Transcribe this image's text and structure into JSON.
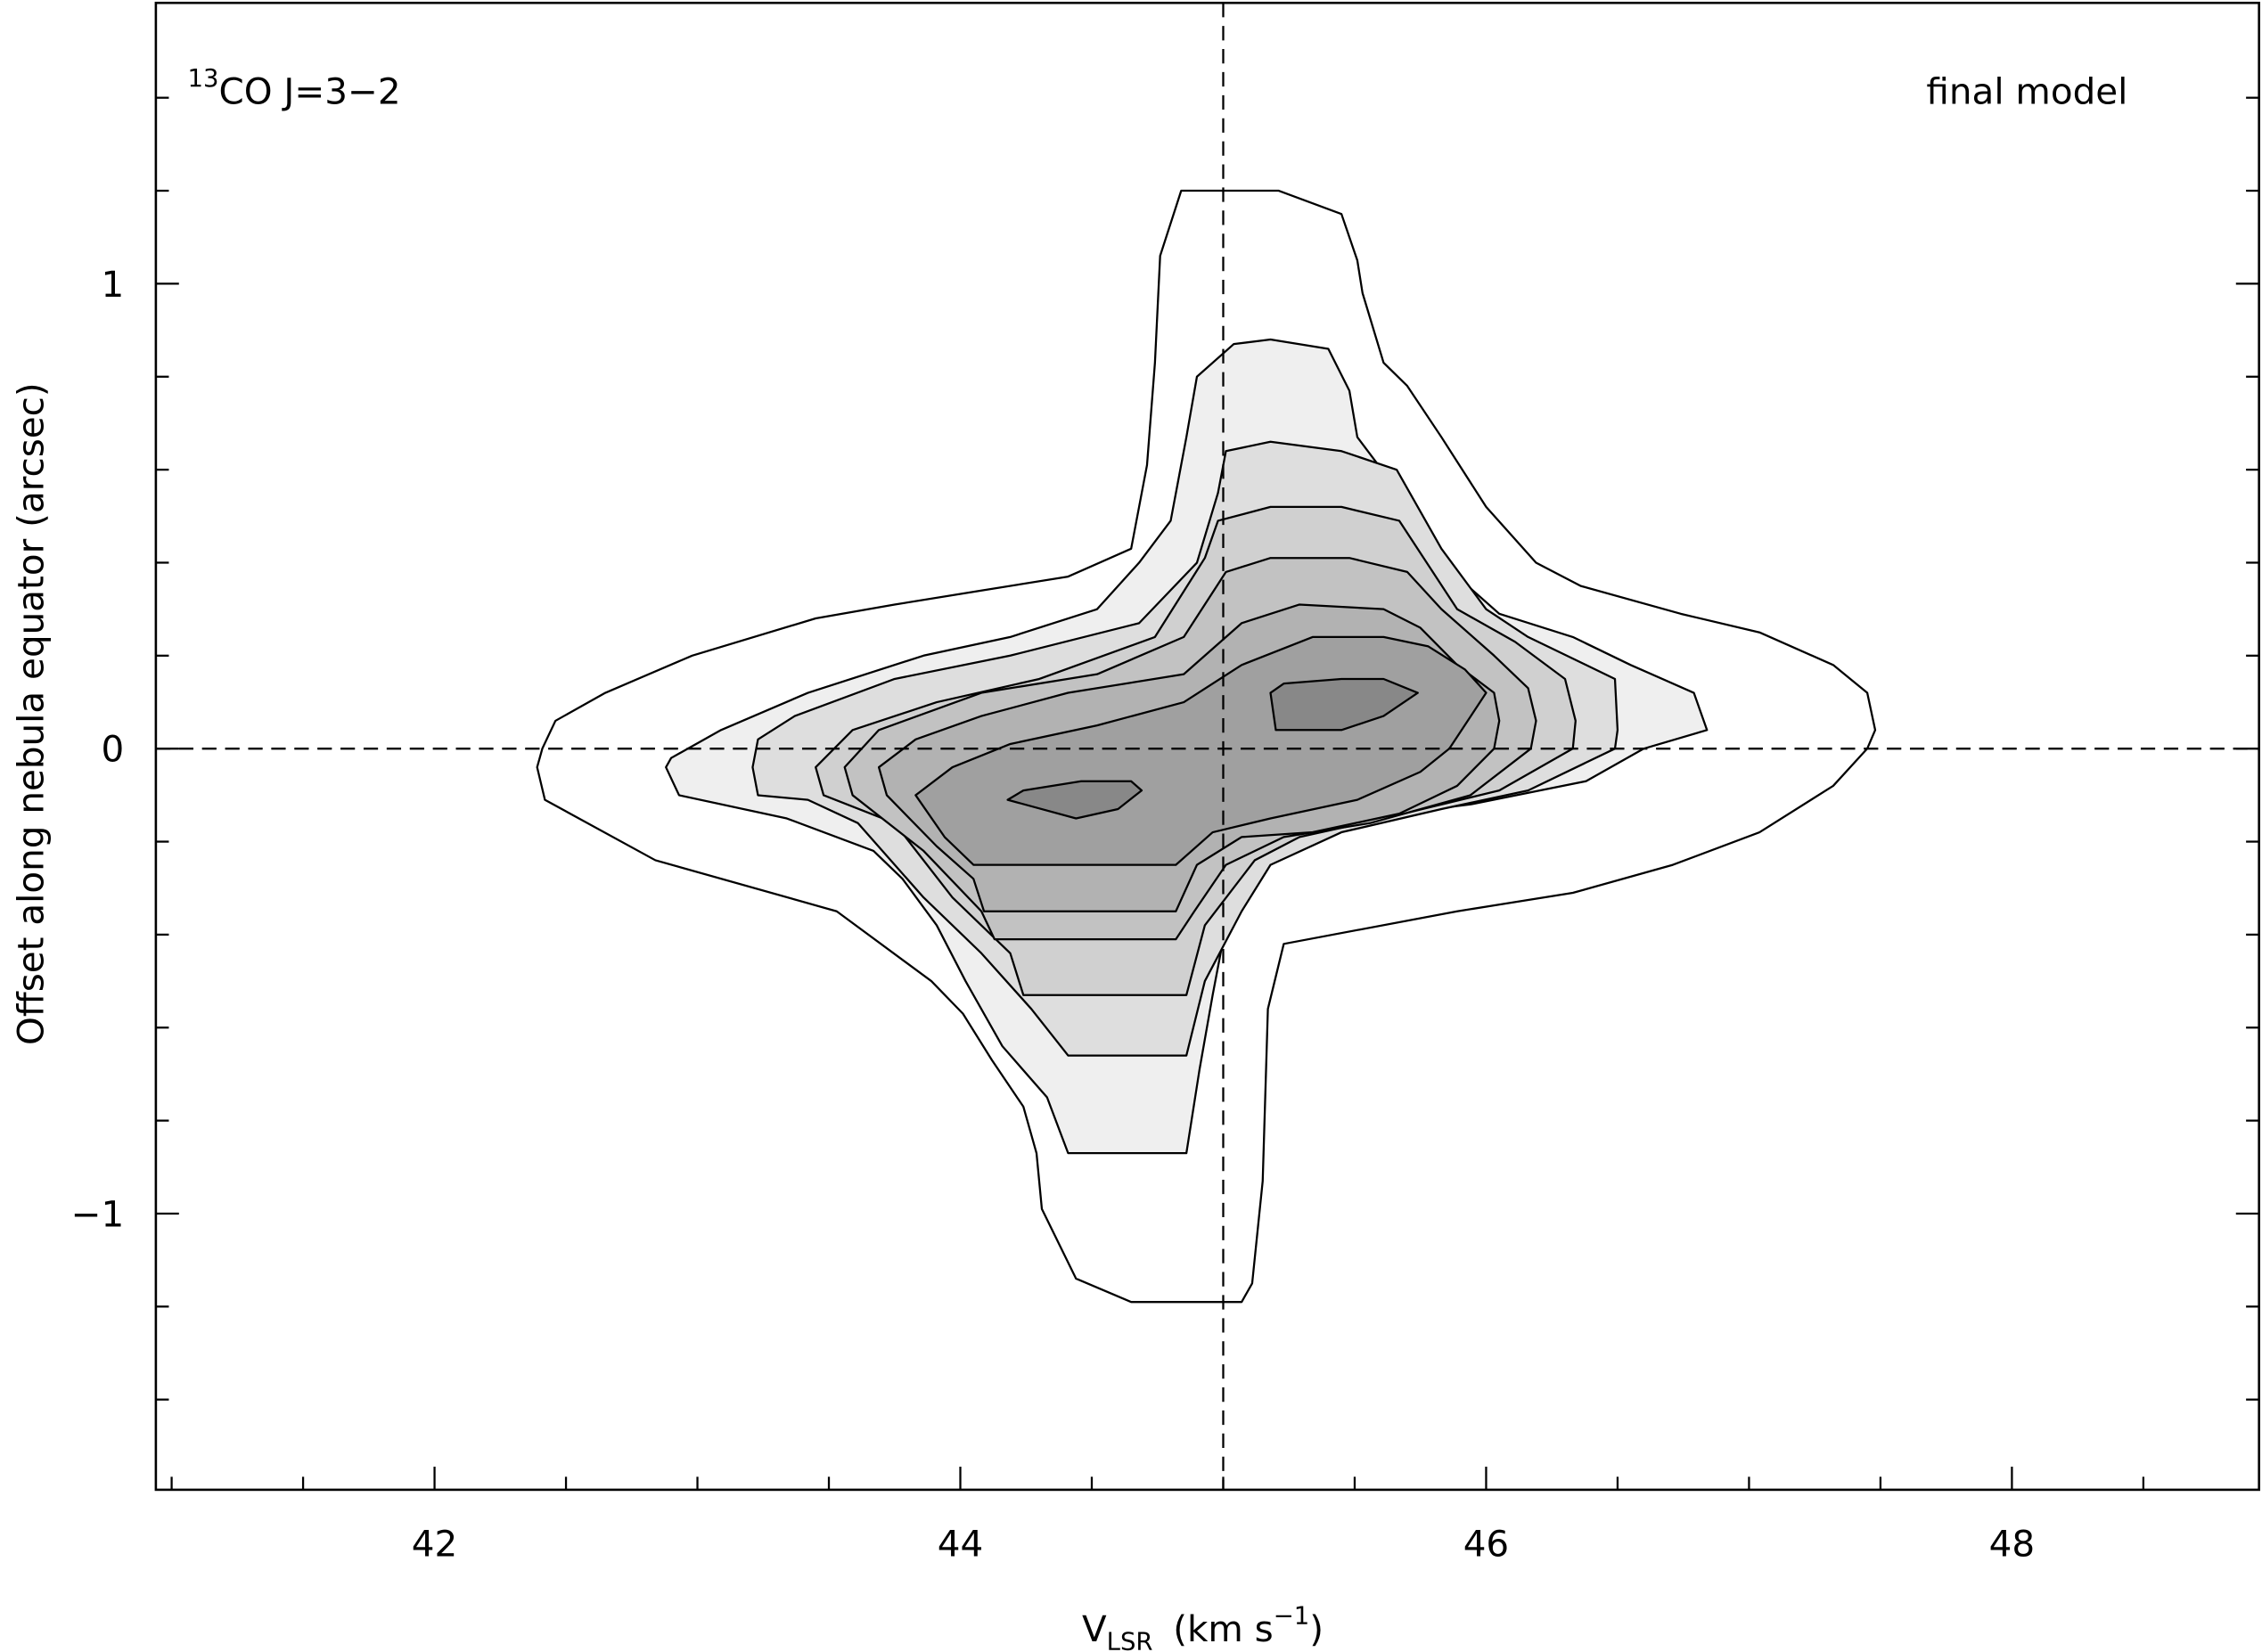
{
  "chart_data": {
    "type": "contour",
    "annotation": {
      "sup": "13",
      "text": "CO J=3−2"
    },
    "label_right": "final model",
    "xlabel": {
      "text": "V",
      "sub": "LSR",
      "unit": "(km s",
      "sup": "−1",
      "close": ")"
    },
    "ylabel": "Offset along nebula equator (arcsec)",
    "xlim": [
      40.94,
      48.94
    ],
    "ylim": [
      -1.594,
      1.604
    ],
    "xticks": [
      42,
      44,
      46,
      48
    ],
    "xminorticks": [
      41,
      41.5,
      42.5,
      43,
      43.5,
      44.5,
      45,
      45.5,
      46.5,
      47,
      47.5,
      48.5
    ],
    "yticks": [
      {
        "value": -1,
        "label": "−1"
      },
      0,
      1
    ],
    "yminorticks": [
      -1.4,
      -1.2,
      -0.8,
      -0.6,
      -0.4,
      -0.2,
      0.2,
      0.4,
      0.6,
      0.8,
      1.2,
      1.4
    ],
    "reference_lines": {
      "x": 45,
      "y": 0
    },
    "contours": [
      {
        "fill": "#ffffff",
        "x": [
          42.41,
          42.39,
          42.42,
          42.84,
          43.53,
          43.89,
          44.01,
          44.12,
          44.24,
          44.29,
          44.31,
          44.44,
          44.65,
          45.07,
          45.11,
          45.15,
          45.17,
          45.23,
          45.89,
          46.33,
          46.71,
          47.04,
          47.32,
          47.45,
          47.48,
          47.45,
          47.32,
          47.04,
          46.74,
          46.36,
          46.19,
          46.0,
          45.83,
          45.7,
          45.61,
          45.53,
          45.51,
          45.45,
          45.21,
          44.84,
          44.76,
          44.74,
          44.71,
          44.65,
          44.41,
          44.08,
          43.75,
          43.45,
          42.98,
          42.65,
          42.46
        ],
        "y": [
          0.0,
          -0.04,
          -0.11,
          -0.24,
          -0.35,
          -0.5,
          -0.57,
          -0.67,
          -0.77,
          -0.87,
          -0.99,
          -1.14,
          -1.19,
          -1.19,
          -1.15,
          -0.93,
          -0.56,
          -0.42,
          -0.35,
          -0.31,
          -0.25,
          -0.18,
          -0.08,
          0.0,
          0.04,
          0.12,
          0.18,
          0.25,
          0.29,
          0.35,
          0.4,
          0.52,
          0.67,
          0.78,
          0.83,
          0.98,
          1.05,
          1.15,
          1.2,
          1.2,
          1.06,
          0.83,
          0.61,
          0.43,
          0.37,
          0.34,
          0.31,
          0.28,
          0.2,
          0.12,
          0.06
        ]
      },
      {
        "fill": "#efefef",
        "x": [
          42.88,
          42.93,
          43.34,
          43.67,
          43.78,
          43.91,
          44.02,
          44.16,
          44.33,
          44.41,
          44.86,
          44.91,
          44.96,
          45.01,
          45.07,
          45.18,
          45.51,
          45.94,
          46.38,
          46.6,
          46.84,
          46.79,
          46.55,
          46.33,
          46.05,
          45.89,
          45.67,
          45.51,
          45.48,
          45.4,
          45.18,
          45.04,
          44.9,
          44.86,
          44.8,
          44.68,
          44.52,
          44.19,
          43.86,
          43.42,
          43.09,
          42.9
        ],
        "y": [
          -0.04,
          -0.1,
          -0.15,
          -0.22,
          -0.28,
          -0.38,
          -0.5,
          -0.64,
          -0.75,
          -0.87,
          -0.87,
          -0.69,
          -0.53,
          -0.38,
          -0.25,
          -0.19,
          -0.15,
          -0.12,
          -0.07,
          0.0,
          0.04,
          0.12,
          0.18,
          0.24,
          0.29,
          0.37,
          0.55,
          0.67,
          0.77,
          0.86,
          0.88,
          0.87,
          0.8,
          0.67,
          0.49,
          0.4,
          0.3,
          0.24,
          0.2,
          0.12,
          0.04,
          -0.02
        ]
      },
      {
        "fill": "#dedede",
        "x": [
          43.21,
          43.23,
          43.42,
          43.61,
          43.86,
          44.08,
          44.27,
          44.41,
          44.86,
          44.93,
          45.07,
          45.18,
          45.45,
          45.83,
          46.16,
          46.49,
          46.5,
          46.49,
          46.16,
          46.0,
          45.83,
          45.66,
          45.45,
          45.18,
          45.01,
          44.98,
          44.9,
          44.68,
          44.19,
          43.75,
          43.37,
          43.23
        ],
        "y": [
          -0.04,
          -0.1,
          -0.11,
          -0.16,
          -0.32,
          -0.44,
          -0.56,
          -0.66,
          -0.66,
          -0.5,
          -0.35,
          -0.25,
          -0.18,
          -0.13,
          -0.09,
          0.0,
          0.04,
          0.15,
          0.24,
          0.3,
          0.43,
          0.6,
          0.64,
          0.66,
          0.64,
          0.55,
          0.4,
          0.27,
          0.2,
          0.15,
          0.07,
          0.02
        ]
      },
      {
        "fill": "#d0d0d0",
        "x": [
          43.45,
          43.48,
          43.75,
          43.97,
          44.19,
          44.24,
          44.86,
          44.93,
          45.12,
          45.29,
          45.61,
          46.05,
          46.33,
          46.34,
          46.3,
          46.11,
          45.89,
          45.67,
          45.45,
          45.18,
          44.98,
          44.93,
          44.74,
          44.3,
          43.91,
          43.59
        ],
        "y": [
          -0.04,
          -0.1,
          -0.16,
          -0.32,
          -0.44,
          -0.53,
          -0.53,
          -0.38,
          -0.24,
          -0.19,
          -0.15,
          -0.09,
          0.0,
          0.06,
          0.15,
          0.23,
          0.3,
          0.49,
          0.52,
          0.52,
          0.49,
          0.41,
          0.24,
          0.15,
          0.1,
          0.04
        ]
      },
      {
        "fill": "#c2c2c2",
        "x": [
          43.56,
          43.59,
          43.86,
          44.08,
          44.13,
          44.82,
          44.89,
          45.01,
          45.23,
          45.56,
          45.94,
          46.17,
          46.19,
          46.16,
          46.03,
          45.83,
          45.7,
          45.48,
          45.18,
          45.01,
          44.85,
          44.52,
          44.08,
          43.69
        ],
        "y": [
          -0.04,
          -0.1,
          -0.22,
          -0.35,
          -0.41,
          -0.41,
          -0.35,
          -0.25,
          -0.19,
          -0.16,
          -0.1,
          0.0,
          0.06,
          0.13,
          0.2,
          0.3,
          0.38,
          0.41,
          0.41,
          0.38,
          0.24,
          0.16,
          0.12,
          0.04
        ]
      },
      {
        "fill": "#b2b2b2",
        "x": [
          43.69,
          43.72,
          43.91,
          44.05,
          44.09,
          44.82,
          44.9,
          45.07,
          45.34,
          45.67,
          45.89,
          46.03,
          46.05,
          46.03,
          45.89,
          45.75,
          45.61,
          45.29,
          45.07,
          44.85,
          44.41,
          44.08,
          43.83
        ],
        "y": [
          -0.04,
          -0.1,
          -0.21,
          -0.28,
          -0.35,
          -0.35,
          -0.25,
          -0.19,
          -0.18,
          -0.14,
          -0.08,
          0.0,
          0.06,
          0.12,
          0.18,
          0.26,
          0.3,
          0.31,
          0.27,
          0.16,
          0.12,
          0.07,
          0.02
        ]
      },
      {
        "fill": "#a0a0a0",
        "x": [
          43.83,
          43.94,
          44.05,
          44.82,
          44.96,
          45.18,
          45.51,
          45.75,
          45.86,
          46.0,
          45.92,
          45.78,
          45.61,
          45.34,
          45.07,
          44.85,
          44.52,
          44.19,
          43.97
        ],
        "y": [
          -0.1,
          -0.19,
          -0.25,
          -0.25,
          -0.18,
          -0.15,
          -0.11,
          -0.05,
          0.0,
          0.12,
          0.17,
          0.22,
          0.24,
          0.24,
          0.18,
          0.1,
          0.05,
          0.01,
          -0.04
        ]
      },
      {
        "fill": "#888888",
        "x": [
          44.18,
          44.44,
          44.6,
          44.69,
          44.65,
          44.46,
          44.24
        ],
        "y": [
          -0.11,
          -0.15,
          -0.13,
          -0.09,
          -0.07,
          -0.07,
          -0.09
        ]
      },
      {
        "fill": "#888888",
        "x": [
          45.18,
          45.2,
          45.45,
          45.61,
          45.74,
          45.61,
          45.45,
          45.23
        ],
        "y": [
          0.12,
          0.04,
          0.04,
          0.07,
          0.12,
          0.15,
          0.15,
          0.14
        ]
      }
    ]
  }
}
